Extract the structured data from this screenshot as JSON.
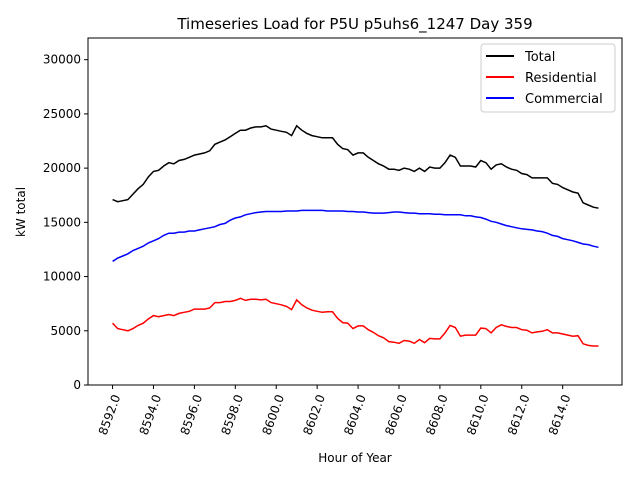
{
  "chart_data": {
    "type": "line",
    "title": "Timeseries Load for P5U p5uhs6_1247  Day 359",
    "xlabel": "Hour of Year",
    "ylabel": "kW total",
    "xlim": [
      8590.8,
      8616.9
    ],
    "ylim": [
      0,
      32000
    ],
    "x_start": 8592,
    "x_step": 0.25,
    "xticks": [
      8592,
      8594,
      8596,
      8598,
      8600,
      8602,
      8604,
      8606,
      8608,
      8610,
      8612,
      8614
    ],
    "xtick_labels": [
      "8592.0",
      "8594.0",
      "8596.0",
      "8598.0",
      "8600.0",
      "8602.0",
      "8604.0",
      "8606.0",
      "8608.0",
      "8610.0",
      "8612.0",
      "8614.0"
    ],
    "yticks": [
      0,
      5000,
      10000,
      15000,
      20000,
      25000,
      30000
    ],
    "ytick_labels": [
      "0",
      "5000",
      "10000",
      "15000",
      "20000",
      "25000",
      "30000"
    ],
    "grid": false,
    "legend_position": "top-right",
    "series": [
      {
        "name": "Total",
        "color": "#000000",
        "values": [
          17100,
          16900,
          17000,
          17100,
          17600,
          18100,
          18500,
          19200,
          19700,
          19800,
          20200,
          20500,
          20400,
          20700,
          20800,
          21000,
          21200,
          21300,
          21400,
          21600,
          22200,
          22400,
          22600,
          22900,
          23200,
          23500,
          23500,
          23700,
          23800,
          23800,
          23900,
          23600,
          23500,
          23400,
          23300,
          23000,
          23900,
          23500,
          23200,
          23000,
          22900,
          22800,
          22800,
          22800,
          22200,
          21800,
          21700,
          21200,
          21400,
          21400,
          21000,
          20700,
          20400,
          20200,
          19900,
          19900,
          19800,
          20000,
          19900,
          19700,
          20000,
          19700,
          20100,
          20000,
          20000,
          20500,
          21200,
          21000,
          20200,
          20200,
          20200,
          20100,
          20700,
          20500,
          19900,
          20300,
          20400,
          20100,
          19900,
          19800,
          19500,
          19400,
          19100,
          19100,
          19100,
          19100,
          18600,
          18500,
          18200,
          18000,
          17800,
          17700,
          16800,
          16600,
          16400,
          16300
        ]
      },
      {
        "name": "Residential",
        "color": "#ff0000",
        "values": [
          5700,
          5200,
          5100,
          5000,
          5200,
          5500,
          5700,
          6100,
          6400,
          6300,
          6400,
          6500,
          6400,
          6600,
          6700,
          6800,
          7000,
          7000,
          7000,
          7100,
          7600,
          7600,
          7700,
          7700,
          7800,
          8000,
          7800,
          7900,
          7900,
          7850,
          7900,
          7600,
          7500,
          7400,
          7250,
          6950,
          7850,
          7400,
          7100,
          6900,
          6800,
          6700,
          6750,
          6750,
          6150,
          5750,
          5700,
          5200,
          5450,
          5450,
          5100,
          4850,
          4550,
          4350,
          4000,
          3950,
          3850,
          4100,
          4050,
          3850,
          4200,
          3900,
          4300,
          4250,
          4250,
          4800,
          5500,
          5300,
          4500,
          4600,
          4600,
          4600,
          5250,
          5200,
          4800,
          5300,
          5550,
          5400,
          5300,
          5300,
          5100,
          5050,
          4800,
          4900,
          4950,
          5100,
          4800,
          4800,
          4700,
          4600,
          4500,
          4550,
          3800,
          3650,
          3600,
          3600
        ]
      },
      {
        "name": "Commercial",
        "color": "#0000ff",
        "values": [
          11400,
          11700,
          11900,
          12100,
          12400,
          12600,
          12800,
          13100,
          13300,
          13500,
          13800,
          14000,
          14000,
          14100,
          14100,
          14200,
          14200,
          14300,
          14400,
          14500,
          14600,
          14800,
          14900,
          15200,
          15400,
          15500,
          15700,
          15800,
          15900,
          15950,
          16000,
          16000,
          16000,
          16000,
          16050,
          16050,
          16050,
          16100,
          16100,
          16100,
          16100,
          16100,
          16050,
          16050,
          16050,
          16050,
          16000,
          16000,
          15950,
          15950,
          15900,
          15850,
          15850,
          15850,
          15900,
          15950,
          15950,
          15900,
          15850,
          15850,
          15800,
          15800,
          15800,
          15750,
          15750,
          15700,
          15700,
          15700,
          15700,
          15600,
          15600,
          15500,
          15450,
          15300,
          15100,
          15000,
          14850,
          14700,
          14600,
          14500,
          14400,
          14350,
          14300,
          14200,
          14150,
          14000,
          13800,
          13700,
          13500,
          13400,
          13300,
          13150,
          13000,
          12950,
          12800,
          12700
        ]
      }
    ]
  }
}
